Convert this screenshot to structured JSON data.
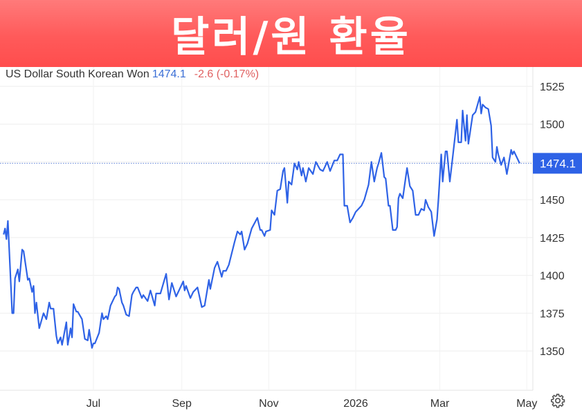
{
  "banner": {
    "title": "달러/원 환율"
  },
  "legend": {
    "name": "US Dollar South Korean Won",
    "price": "1474.1",
    "change": "-2.6 (-0.17%)"
  },
  "colors": {
    "line": "#2e62e6",
    "banner": "#ff5a5a",
    "price_label_bg": "#2e62e6",
    "change": "#e06060"
  },
  "icons": {
    "settings": "gear-icon"
  },
  "chart_data": {
    "type": "line",
    "title": "",
    "xlabel": "",
    "ylabel": "",
    "ylim": [
      1320,
      1535
    ],
    "grid": true,
    "y_ticks": [
      1525,
      1500,
      1475,
      1450,
      1425,
      1400,
      1375,
      1350
    ],
    "y_tick_labels": [
      "1525",
      "1500",
      "1450",
      "1425",
      "1400",
      "1375",
      "1350"
    ],
    "x_ticks": [
      {
        "date": "2025-07-01",
        "label": "Jul"
      },
      {
        "date": "2025-09-01",
        "label": "Sep"
      },
      {
        "date": "2025-11-01",
        "label": "Nov"
      },
      {
        "date": "2026-01-01",
        "label": "2026"
      },
      {
        "date": "2026-03-01",
        "label": "Mar"
      },
      {
        "date": "2026-05-01",
        "label": "May"
      }
    ],
    "last_value_label": "1474.1",
    "last_value": 1474.1,
    "series": [
      {
        "points": [
          [
            "2025-04-29",
            1427
          ],
          [
            "2025-04-30",
            1431
          ],
          [
            "2025-05-01",
            1424
          ],
          [
            "2025-05-02",
            1436
          ],
          [
            "2025-05-05",
            1375
          ],
          [
            "2025-05-06",
            1375
          ],
          [
            "2025-05-07",
            1398
          ],
          [
            "2025-05-09",
            1404
          ],
          [
            "2025-05-10",
            1396
          ],
          [
            "2025-05-12",
            1417
          ],
          [
            "2025-05-13",
            1416
          ],
          [
            "2025-05-16",
            1397
          ],
          [
            "2025-05-17",
            1398
          ],
          [
            "2025-05-19",
            1389
          ],
          [
            "2025-05-20",
            1393
          ],
          [
            "2025-05-21",
            1375
          ],
          [
            "2025-05-22",
            1382
          ],
          [
            "2025-05-24",
            1365
          ],
          [
            "2025-05-27",
            1375
          ],
          [
            "2025-05-29",
            1371
          ],
          [
            "2025-05-31",
            1382
          ],
          [
            "2025-06-01",
            1378
          ],
          [
            "2025-06-03",
            1378
          ],
          [
            "2025-06-05",
            1360
          ],
          [
            "2025-06-06",
            1355
          ],
          [
            "2025-06-08",
            1359
          ],
          [
            "2025-06-09",
            1354
          ],
          [
            "2025-06-12",
            1369
          ],
          [
            "2025-06-13",
            1354
          ],
          [
            "2025-06-15",
            1365
          ],
          [
            "2025-06-16",
            1359
          ],
          [
            "2025-06-17",
            1381
          ],
          [
            "2025-06-19",
            1376
          ],
          [
            "2025-06-20",
            1376
          ],
          [
            "2025-06-23",
            1371
          ],
          [
            "2025-06-25",
            1358
          ],
          [
            "2025-06-27",
            1357
          ],
          [
            "2025-06-28",
            1364
          ],
          [
            "2025-06-30",
            1352
          ],
          [
            "2025-07-01",
            1355
          ],
          [
            "2025-07-02",
            1355
          ],
          [
            "2025-07-05",
            1362
          ],
          [
            "2025-07-07",
            1375
          ],
          [
            "2025-07-08",
            1371
          ],
          [
            "2025-07-10",
            1373
          ],
          [
            "2025-07-11",
            1371
          ],
          [
            "2025-07-13",
            1380
          ],
          [
            "2025-07-16",
            1386
          ],
          [
            "2025-07-17",
            1387
          ],
          [
            "2025-07-18",
            1392
          ],
          [
            "2025-07-19",
            1391
          ],
          [
            "2025-07-21",
            1382
          ],
          [
            "2025-07-22",
            1380
          ],
          [
            "2025-07-24",
            1374
          ],
          [
            "2025-07-26",
            1373
          ],
          [
            "2025-07-28",
            1387
          ],
          [
            "2025-07-29",
            1389
          ],
          [
            "2025-07-31",
            1392
          ],
          [
            "2025-08-01",
            1392
          ],
          [
            "2025-08-04",
            1385
          ],
          [
            "2025-08-05",
            1387
          ],
          [
            "2025-08-08",
            1383
          ],
          [
            "2025-08-10",
            1390
          ],
          [
            "2025-08-13",
            1380
          ],
          [
            "2025-08-14",
            1388
          ],
          [
            "2025-08-17",
            1388
          ],
          [
            "2025-08-21",
            1401
          ],
          [
            "2025-08-23",
            1384
          ],
          [
            "2025-08-25",
            1395
          ],
          [
            "2025-08-28",
            1386
          ],
          [
            "2025-09-02",
            1396
          ],
          [
            "2025-09-03",
            1390
          ],
          [
            "2025-09-04",
            1393
          ],
          [
            "2025-09-07",
            1385
          ],
          [
            "2025-09-09",
            1389
          ],
          [
            "2025-09-12",
            1392
          ],
          [
            "2025-09-15",
            1379
          ],
          [
            "2025-09-17",
            1380
          ],
          [
            "2025-09-20",
            1397
          ],
          [
            "2025-09-21",
            1391
          ],
          [
            "2025-09-24",
            1405
          ],
          [
            "2025-09-26",
            1409
          ],
          [
            "2025-09-29",
            1399
          ],
          [
            "2025-09-30",
            1403
          ],
          [
            "2025-10-02",
            1403
          ],
          [
            "2025-10-04",
            1407
          ],
          [
            "2025-10-08",
            1422
          ],
          [
            "2025-10-10",
            1429
          ],
          [
            "2025-10-12",
            1427
          ],
          [
            "2025-10-13",
            1429
          ],
          [
            "2025-10-15",
            1417
          ],
          [
            "2025-10-17",
            1421
          ],
          [
            "2025-10-20",
            1431
          ],
          [
            "2025-10-24",
            1438
          ],
          [
            "2025-10-26",
            1430
          ],
          [
            "2025-10-27",
            1430
          ],
          [
            "2025-10-29",
            1426
          ],
          [
            "2025-10-30",
            1429
          ],
          [
            "2025-11-02",
            1430
          ],
          [
            "2025-11-03",
            1443
          ],
          [
            "2025-11-05",
            1440
          ],
          [
            "2025-11-07",
            1456
          ],
          [
            "2025-11-09",
            1457
          ],
          [
            "2025-11-11",
            1469
          ],
          [
            "2025-11-12",
            1471
          ],
          [
            "2025-11-14",
            1448
          ],
          [
            "2025-11-15",
            1462
          ],
          [
            "2025-11-17",
            1460
          ],
          [
            "2025-11-19",
            1474
          ],
          [
            "2025-11-21",
            1470
          ],
          [
            "2025-11-22",
            1475
          ],
          [
            "2025-11-24",
            1466
          ],
          [
            "2025-11-25",
            1471
          ],
          [
            "2025-11-27",
            1462
          ],
          [
            "2025-11-29",
            1471
          ],
          [
            "2025-12-02",
            1467
          ],
          [
            "2025-12-04",
            1475
          ],
          [
            "2025-12-07",
            1470
          ],
          [
            "2025-12-09",
            1469
          ],
          [
            "2025-12-12",
            1475
          ],
          [
            "2025-12-14",
            1469
          ],
          [
            "2025-12-17",
            1476
          ],
          [
            "2025-12-19",
            1476
          ],
          [
            "2025-12-21",
            1480
          ],
          [
            "2025-12-23",
            1480
          ],
          [
            "2025-12-24",
            1446
          ],
          [
            "2025-12-26",
            1446
          ],
          [
            "2025-12-28",
            1435
          ],
          [
            "2025-12-30",
            1438
          ],
          [
            "2026-01-01",
            1442
          ],
          [
            "2026-01-02",
            1443
          ],
          [
            "2026-01-05",
            1446
          ],
          [
            "2026-01-07",
            1450
          ],
          [
            "2026-01-10",
            1460
          ],
          [
            "2026-01-12",
            1475
          ],
          [
            "2026-01-14",
            1462
          ],
          [
            "2026-01-16",
            1471
          ],
          [
            "2026-01-17",
            1474
          ],
          [
            "2026-01-19",
            1481
          ],
          [
            "2026-01-21",
            1465
          ],
          [
            "2026-01-22",
            1464
          ],
          [
            "2026-01-24",
            1446
          ],
          [
            "2026-01-25",
            1446
          ],
          [
            "2026-01-27",
            1430
          ],
          [
            "2026-01-29",
            1430
          ],
          [
            "2026-01-30",
            1432
          ],
          [
            "2026-01-31",
            1451
          ],
          [
            "2026-02-01",
            1454
          ],
          [
            "2026-02-03",
            1451
          ],
          [
            "2026-02-06",
            1471
          ],
          [
            "2026-02-08",
            1459
          ],
          [
            "2026-02-10",
            1456
          ],
          [
            "2026-02-12",
            1440
          ],
          [
            "2026-02-14",
            1440
          ],
          [
            "2026-02-16",
            1444
          ],
          [
            "2026-02-18",
            1443
          ],
          [
            "2026-02-19",
            1450
          ],
          [
            "2026-02-21",
            1445
          ],
          [
            "2026-02-23",
            1442
          ],
          [
            "2026-02-25",
            1426
          ],
          [
            "2026-02-27",
            1437
          ],
          [
            "2026-02-28",
            1450
          ],
          [
            "2026-03-02",
            1480
          ],
          [
            "2026-03-03",
            1462
          ],
          [
            "2026-03-05",
            1482
          ],
          [
            "2026-03-06",
            1482
          ],
          [
            "2026-03-08",
            1462
          ],
          [
            "2026-03-10",
            1478
          ],
          [
            "2026-03-13",
            1503
          ],
          [
            "2026-03-14",
            1488
          ],
          [
            "2026-03-16",
            1488
          ],
          [
            "2026-03-17",
            1509
          ],
          [
            "2026-03-19",
            1489
          ],
          [
            "2026-03-20",
            1506
          ],
          [
            "2026-03-21",
            1487
          ],
          [
            "2026-03-24",
            1506
          ],
          [
            "2026-03-26",
            1508
          ],
          [
            "2026-03-29",
            1518
          ],
          [
            "2026-03-30",
            1507
          ],
          [
            "2026-03-31",
            1513
          ],
          [
            "2026-04-02",
            1511
          ],
          [
            "2026-04-04",
            1510
          ],
          [
            "2026-04-06",
            1499
          ],
          [
            "2026-04-07",
            1478
          ],
          [
            "2026-04-09",
            1475
          ],
          [
            "2026-04-10",
            1485
          ],
          [
            "2026-04-11",
            1480
          ],
          [
            "2026-04-13",
            1473
          ],
          [
            "2026-04-15",
            1478
          ],
          [
            "2026-04-17",
            1467
          ],
          [
            "2026-04-20",
            1483
          ],
          [
            "2026-04-21",
            1480
          ],
          [
            "2026-04-22",
            1482
          ],
          [
            "2026-04-26",
            1474.1
          ]
        ]
      }
    ]
  }
}
